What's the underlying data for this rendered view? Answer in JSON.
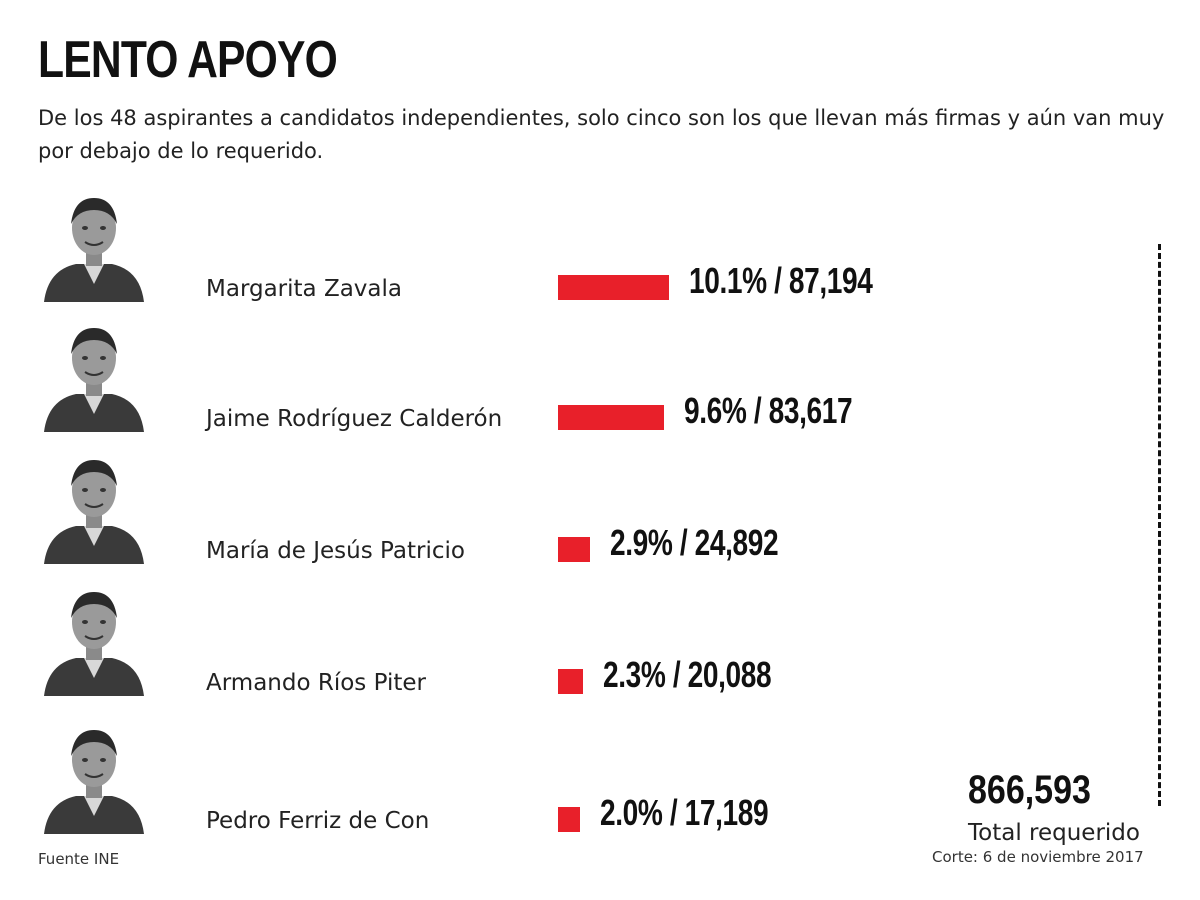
{
  "header": {
    "title": "LENTO APOYO",
    "subtitle": "De los 48 aspirantes a candidatos independientes, solo cinco son los que llevan más firmas y aún van muy por debajo de lo requerido."
  },
  "chart_data": {
    "type": "bar",
    "title": "LENTO APOYO",
    "categories": [
      "Margarita Zavala",
      "Jaime Rodríguez Calderón",
      "María de Jesús Patricio",
      "Armando Ríos Piter",
      "Pedro Ferriz de Con"
    ],
    "series": [
      {
        "values": [
          10.1,
          9.6,
          2.9,
          2.3,
          2.0
        ],
        "signatures": [
          87194,
          83617,
          24892,
          20088,
          17189
        ]
      }
    ],
    "labels": [
      "10.1% / 87,194",
      "9.6% / 83,617",
      "2.9%  / 24,892",
      "2.3% / 20,088",
      "2.0% / 17,189"
    ],
    "total_required": "866,593",
    "total_label": "Total requerido",
    "cutoff": "Corte: 6 de noviembre 2017",
    "source": "Fuente INE",
    "xlim": [
      0,
      100
    ],
    "orientation": "horizontal",
    "grid": false,
    "legend": "none"
  },
  "colors": {
    "bar": "#e8202a",
    "text": "#111111"
  }
}
